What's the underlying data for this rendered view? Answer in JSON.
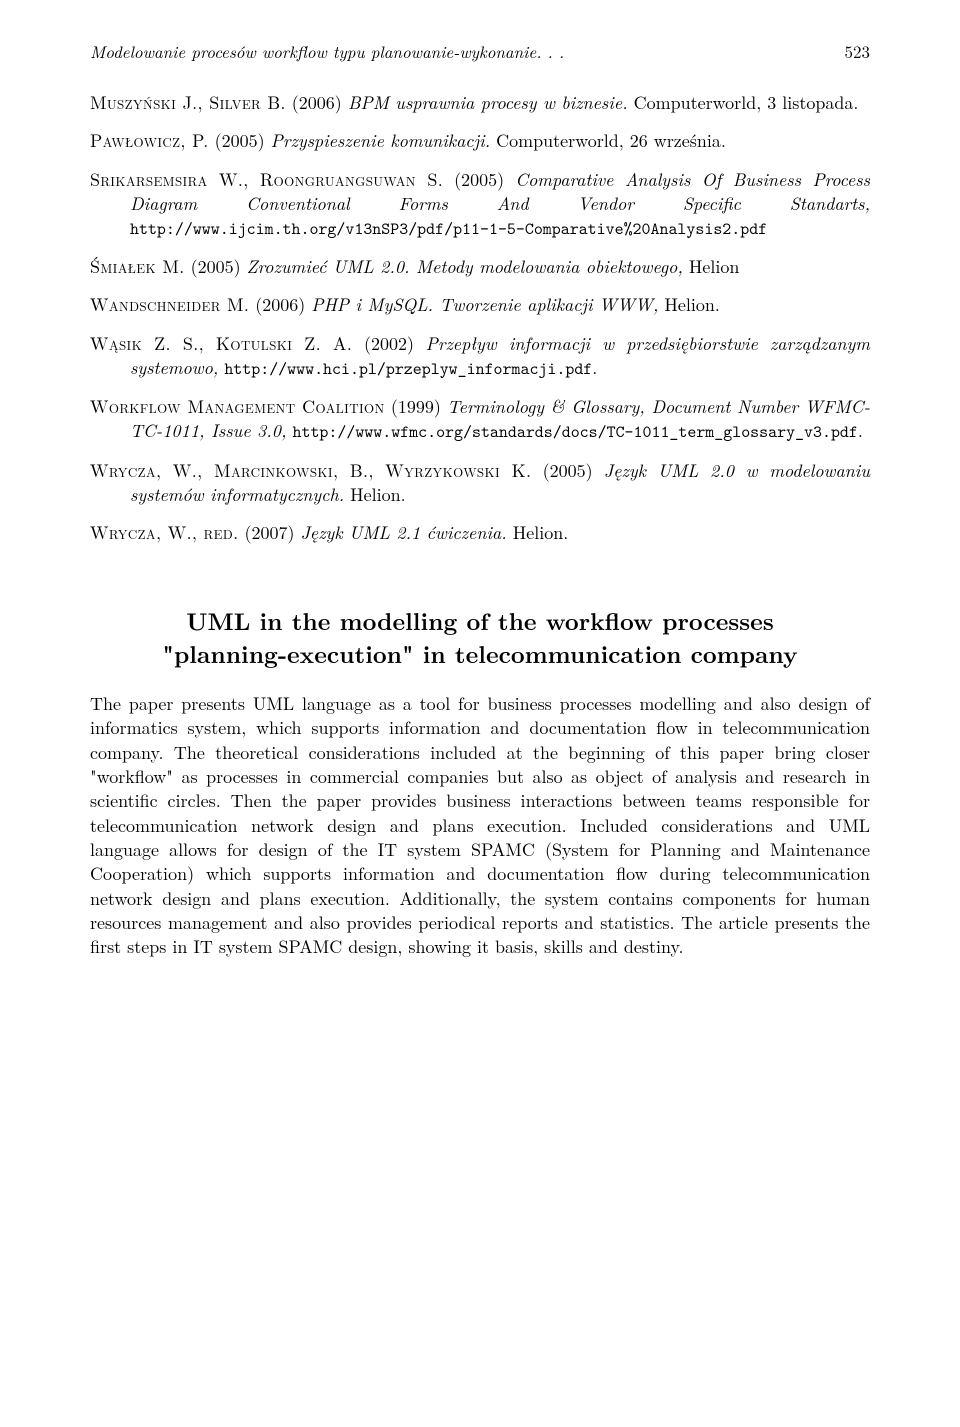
{
  "header": {
    "running_title": "Modelowanie procesów workflow typu planowanie-wykonanie. . .",
    "page_number": "523"
  },
  "refs": {
    "muszynski_authors": "Muszyński J., Silver B.",
    "muszynski_year": "(2006)",
    "muszynski_title": "BPM usprawnia procesy w biznesie.",
    "muszynski_rest": " Computerworld, 3 listopada.",
    "pawlowicz_authors": "Pawłowicz, P.",
    "pawlowicz_year": "(2005)",
    "pawlowicz_title": "Przyspieszenie komunikacji.",
    "pawlowicz_rest": " Computerworld, 26 września.",
    "srikarsemsira_authors": "Srikarsemsira W., Roongruangsuwan S.",
    "srikarsemsira_year": "(2005)",
    "srikarsemsira_title": "Comparative Analysis Of Business Process Diagram Conventional Forms And Vendor Specific Standarts,",
    "srikarsemsira_url": "http://www.ijcim.th.org/v13nSP3/pdf/p11-1-5-Comparative%20Analysis2.pdf",
    "smialek_authors": "Śmiałek M.",
    "smialek_year": "(2005)",
    "smialek_title": "Zrozumieć UML 2.0. Metody modelowania obiektowego,",
    "smialek_rest": " Helion",
    "wandschneider_authors": "Wandschneider M.",
    "wandschneider_year": "(2006)",
    "wandschneider_title": "PHP i MySQL. Tworzenie aplikacji WWW,",
    "wandschneider_rest": " Helion.",
    "wasik_authors": "Wąsik Z. S., Kotulski Z. A.",
    "wasik_year": "(2002)",
    "wasik_title": "Przepływ informacji w przedsiębiorstwie zarządzanym systemowo,",
    "wasik_url": "http://www.hci.pl/przeplyw_informacji.pdf",
    "wasik_dot": ".",
    "wfmc_authors": "Workflow Management Coalition",
    "wfmc_year": "(1999)",
    "wfmc_title": "Terminology & Glossary, Document Number WFMC-TC-1011, Issue 3.0,",
    "wfmc_url": "http://www.wfmc.org/standards/docs/TC-1011_term_glossary_v3.pdf",
    "wfmc_dot": ".",
    "wrycza1_authors": "Wrycza, W., Marcinkowski, B., Wyrzykowski K.",
    "wrycza1_year": "(2005)",
    "wrycza1_title": "Język UML 2.0 w modelowaniu systemów informatycznych.",
    "wrycza1_rest": " Helion.",
    "wrycza2_authors": "Wrycza, W., red.",
    "wrycza2_year": "(2007)",
    "wrycza2_title": "Język UML 2.1 ćwiczenia.",
    "wrycza2_rest": " Helion."
  },
  "abstract": {
    "title_line1": "UML in the modelling of the workflow processes",
    "title_line2": "\"planning-execution\" in telecommunication company",
    "body": "The paper presents UML language as a tool for business processes modelling and also design of informatics system, which supports information and documentation flow in telecommunication company. The theoretical considerations included at the beginning of this paper bring closer \"workflow\" as processes in commercial companies but also as object of analysis and research in scientific circles. Then the paper provides business interactions between teams responsible for telecommunication network design and plans execution. Included considerations and UML language allows for design of the IT system SPAMC (System for Planning and Maintenance Cooperation) which supports information and documentation flow during telecommunication network design and plans execution. Additionally, the system contains components for human resources management and also provides periodical reports and statistics. The article presents the first steps in IT system SPAMC design, showing it basis, skills and destiny."
  }
}
